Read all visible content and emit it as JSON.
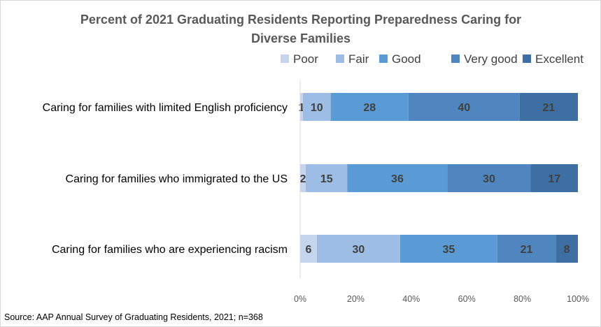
{
  "chart_data": {
    "type": "bar",
    "orientation": "horizontal",
    "stacked": true,
    "title_lines": [
      "Percent of 2021 Graduating Residents Reporting Preparedness Caring for",
      "Diverse Families"
    ],
    "categories": [
      "Caring for families with limited English proficiency",
      "Caring for families who immigrated to the US",
      "Caring for families who are experiencing racism"
    ],
    "series": [
      {
        "name": "Poor",
        "color": "#c5d5ee",
        "values": [
          1,
          2,
          6
        ]
      },
      {
        "name": "Fair",
        "color": "#9dbde4",
        "values": [
          10,
          15,
          30
        ]
      },
      {
        "name": "Good",
        "color": "#5b9bd5",
        "values": [
          28,
          36,
          35
        ]
      },
      {
        "name": "Very good",
        "color": "#4f86bf",
        "values": [
          40,
          30,
          21
        ]
      },
      {
        "name": "Excellent",
        "color": "#3e6fa3",
        "values": [
          21,
          17,
          8
        ]
      }
    ],
    "xlim": [
      0,
      100
    ],
    "xticks": [
      "0%",
      "20%",
      "40%",
      "60%",
      "80%",
      "100%"
    ],
    "legend_position": "top-right",
    "grid": false,
    "source": "Source: AAP Annual Survey of Graduating Residents, 2021; n=368"
  }
}
